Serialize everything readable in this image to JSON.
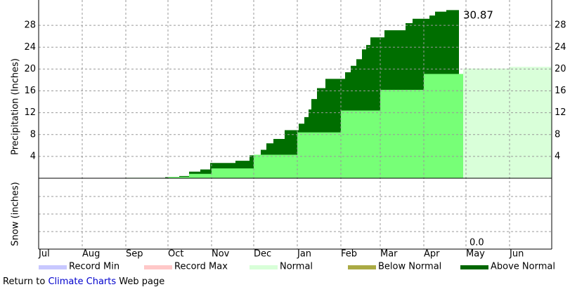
{
  "chart_data": {
    "type": "step-area",
    "ylabel": "Precipitation (Inches)",
    "snow_label": "Snow (inches)",
    "xlim": [
      0,
      365
    ],
    "xticks": [
      {
        "value": 0,
        "label": "Jul"
      },
      {
        "value": 31,
        "label": "Aug"
      },
      {
        "value": 62,
        "label": "Sep"
      },
      {
        "value": 92,
        "label": "Oct"
      },
      {
        "value": 123,
        "label": "Nov"
      },
      {
        "value": 153,
        "label": "Dec"
      },
      {
        "value": 184,
        "label": "Jan"
      },
      {
        "value": 215,
        "label": "Feb"
      },
      {
        "value": 243,
        "label": "Mar"
      },
      {
        "value": 274,
        "label": "Apr"
      },
      {
        "value": 304,
        "label": "May"
      },
      {
        "value": 335,
        "label": "Jun"
      }
    ],
    "ylim": [
      0,
      32
    ],
    "yticks": [
      4,
      8,
      12,
      16,
      20,
      24,
      28
    ],
    "grid": true,
    "series": [
      {
        "color": "#77ff77",
        "x": [
          0,
          31,
          62,
          92,
          107,
          123,
          153,
          184,
          215,
          243,
          274,
          302
        ],
        "values": [
          0,
          0.02,
          0.08,
          0.25,
          0.8,
          1.8,
          4.3,
          8.4,
          12.4,
          16.2,
          19.1,
          20.1
        ]
      },
      {
        "color": "#d9ffd9",
        "x": [
          302,
          335,
          365
        ],
        "values": [
          20.1,
          20.4,
          20.6
        ]
      },
      {
        "color": "#006e00",
        "x": [
          0,
          31,
          60,
          90,
          100,
          107,
          115,
          122,
          140,
          150,
          158,
          162,
          167,
          175,
          185,
          189,
          192,
          194,
          198,
          204,
          214,
          218,
          222,
          226,
          230,
          233,
          236,
          246,
          261,
          266,
          278,
          282,
          290,
          299
        ],
        "values": [
          0,
          0.02,
          0.05,
          0.2,
          0.4,
          1.2,
          1.6,
          2.8,
          3.2,
          4.2,
          5.2,
          6.4,
          7.2,
          8.8,
          10,
          11.2,
          12.6,
          14.5,
          16.5,
          18.2,
          18.2,
          19.4,
          20.6,
          21.8,
          23.6,
          24.4,
          25.8,
          27.1,
          28.4,
          29.2,
          29.8,
          30.5,
          30.8,
          30.87
        ],
        "value_labels": {
          "33": "30.87"
        }
      }
    ],
    "snow_annotation": "0.0",
    "legend": [
      {
        "name": "Record Min",
        "color": "#c8c8ff"
      },
      {
        "name": "Record Max",
        "color": "#ffc8c8"
      },
      {
        "name": "Normal",
        "color": "#d8ffd8"
      },
      {
        "name": "Below Normal",
        "color": "#aaaa44"
      },
      {
        "name": "Above Normal",
        "color": "#006600"
      }
    ]
  },
  "footer": {
    "prefix": "Return to ",
    "link": "Climate Charts",
    "suffix": " Web page"
  }
}
